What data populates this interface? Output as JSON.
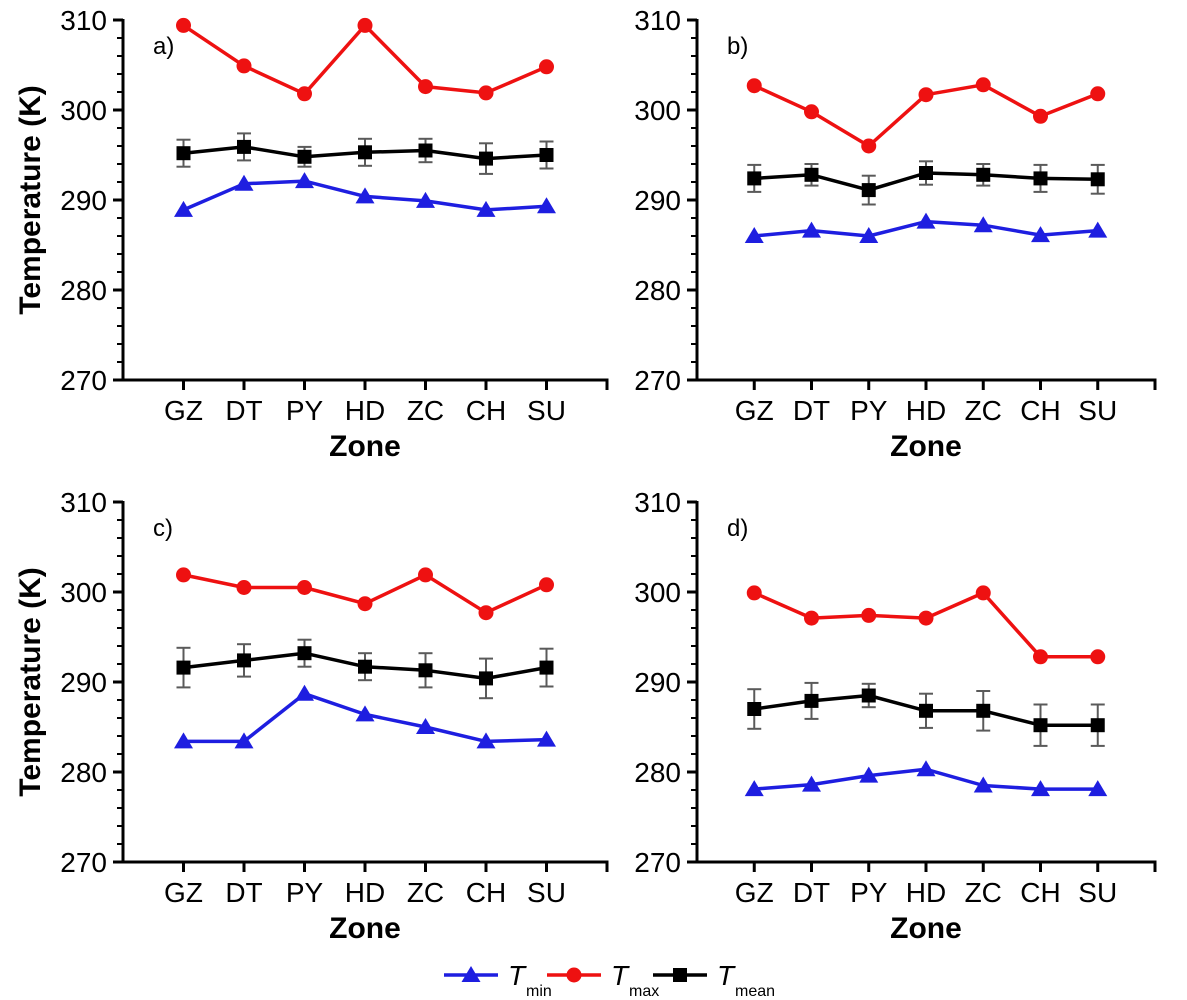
{
  "figure": {
    "background": "#ffffff"
  },
  "colors": {
    "tmin": "#1e1ee0",
    "tmax": "#ee1111",
    "tmean": "#000000",
    "error_bar": "#5a5a5a",
    "axis": "#000000"
  },
  "legend": {
    "items": [
      {
        "key": "tmin",
        "symbol": "triangle",
        "label": "T",
        "sub": "min"
      },
      {
        "key": "tmax",
        "symbol": "circle",
        "label": "T",
        "sub": "max"
      },
      {
        "key": "tmean",
        "symbol": "square",
        "label": "T",
        "sub": "mean"
      }
    ]
  },
  "chart_data": [
    {
      "type": "line",
      "panel_label": "a)",
      "xlabel": "Zone",
      "ylabel": "Temperature (K)",
      "categories": [
        "GZ",
        "DT",
        "PY",
        "HD",
        "ZC",
        "CH",
        "SU"
      ],
      "ylim": [
        270,
        310
      ],
      "yticks": [
        270,
        280,
        290,
        300,
        310
      ],
      "minor_tick_step": 2,
      "grid": false,
      "series": [
        {
          "name": "T_min",
          "key": "tmin",
          "marker": "triangle",
          "values": [
            288.9,
            291.8,
            292.1,
            290.4,
            289.9,
            288.9,
            289.3
          ]
        },
        {
          "name": "T_max",
          "key": "tmax",
          "marker": "circle",
          "values": [
            309.4,
            304.9,
            301.8,
            309.4,
            302.6,
            301.9,
            304.8
          ]
        },
        {
          "name": "T_mean",
          "key": "tmean",
          "marker": "square",
          "values": [
            295.2,
            295.9,
            294.8,
            295.3,
            295.5,
            294.6,
            295.0
          ],
          "errors": [
            1.5,
            1.5,
            1.1,
            1.5,
            1.3,
            1.7,
            1.5
          ]
        }
      ]
    },
    {
      "type": "line",
      "panel_label": "b)",
      "xlabel": "Zone",
      "ylabel": "Temperature (K)",
      "categories": [
        "GZ",
        "DT",
        "PY",
        "HD",
        "ZC",
        "CH",
        "SU"
      ],
      "ylim": [
        270,
        310
      ],
      "yticks": [
        270,
        280,
        290,
        300,
        310
      ],
      "minor_tick_step": 2,
      "grid": false,
      "series": [
        {
          "name": "T_min",
          "key": "tmin",
          "marker": "triangle",
          "values": [
            286.0,
            286.6,
            286.0,
            287.6,
            287.2,
            286.1,
            286.6
          ]
        },
        {
          "name": "T_max",
          "key": "tmax",
          "marker": "circle",
          "values": [
            302.7,
            299.8,
            296.0,
            301.7,
            302.8,
            299.3,
            301.8
          ]
        },
        {
          "name": "T_mean",
          "key": "tmean",
          "marker": "square",
          "values": [
            292.4,
            292.8,
            291.1,
            293.0,
            292.8,
            292.4,
            292.3
          ],
          "errors": [
            1.5,
            1.2,
            1.6,
            1.3,
            1.2,
            1.5,
            1.6
          ]
        }
      ]
    },
    {
      "type": "line",
      "panel_label": "c)",
      "xlabel": "Zone",
      "ylabel": "Temperature (K)",
      "categories": [
        "GZ",
        "DT",
        "PY",
        "HD",
        "ZC",
        "CH",
        "SU"
      ],
      "ylim": [
        270,
        310
      ],
      "yticks": [
        270,
        280,
        290,
        300,
        310
      ],
      "minor_tick_step": 2,
      "grid": false,
      "series": [
        {
          "name": "T_min",
          "key": "tmin",
          "marker": "triangle",
          "values": [
            283.4,
            283.4,
            288.7,
            286.4,
            285.0,
            283.4,
            283.6
          ]
        },
        {
          "name": "T_max",
          "key": "tmax",
          "marker": "circle",
          "values": [
            301.9,
            300.5,
            300.5,
            298.7,
            301.9,
            297.7,
            300.8
          ]
        },
        {
          "name": "T_mean",
          "key": "tmean",
          "marker": "square",
          "values": [
            291.6,
            292.4,
            293.2,
            291.7,
            291.3,
            290.4,
            291.6
          ],
          "errors": [
            2.2,
            1.8,
            1.5,
            1.5,
            1.9,
            2.2,
            2.1
          ]
        }
      ]
    },
    {
      "type": "line",
      "panel_label": "d)",
      "xlabel": "Zone",
      "ylabel": "Temperature (K)",
      "categories": [
        "GZ",
        "DT",
        "PY",
        "HD",
        "ZC",
        "CH",
        "SU"
      ],
      "ylim": [
        270,
        310
      ],
      "yticks": [
        270,
        280,
        290,
        300,
        310
      ],
      "minor_tick_step": 2,
      "grid": false,
      "series": [
        {
          "name": "T_min",
          "key": "tmin",
          "marker": "triangle",
          "values": [
            278.1,
            278.6,
            279.6,
            280.3,
            278.5,
            278.1,
            278.1
          ]
        },
        {
          "name": "T_max",
          "key": "tmax",
          "marker": "circle",
          "values": [
            299.9,
            297.1,
            297.4,
            297.1,
            299.9,
            292.8,
            292.8
          ]
        },
        {
          "name": "T_mean",
          "key": "tmean",
          "marker": "square",
          "values": [
            287.0,
            287.9,
            288.5,
            286.8,
            286.8,
            285.2,
            285.2
          ],
          "errors": [
            2.2,
            2.0,
            1.3,
            1.9,
            2.2,
            2.3,
            2.3
          ]
        }
      ]
    }
  ]
}
